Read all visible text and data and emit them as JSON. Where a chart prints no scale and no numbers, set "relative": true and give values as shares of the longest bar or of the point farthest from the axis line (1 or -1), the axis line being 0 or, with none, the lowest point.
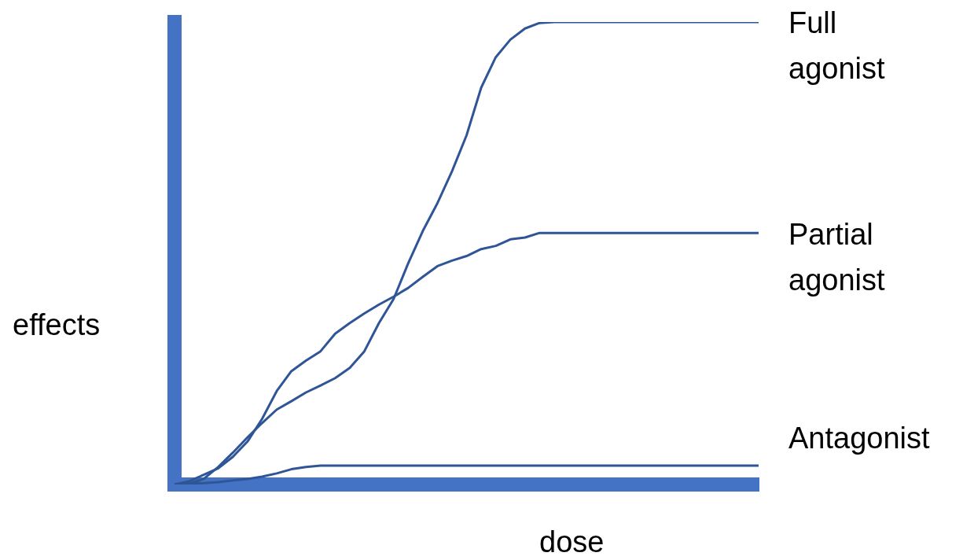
{
  "chart_data": {
    "type": "line",
    "relative": true,
    "xlabel": "dose",
    "ylabel": "effects",
    "legend": false,
    "marker": "none",
    "tick_labels": false,
    "categories": [
      null,
      null,
      null,
      null,
      null,
      null,
      null,
      null,
      null,
      null,
      null,
      null,
      null,
      null,
      null,
      null,
      null,
      null,
      null,
      null,
      null,
      null,
      null,
      null,
      null,
      null,
      null,
      null,
      null,
      null,
      null,
      null,
      null,
      null,
      null,
      null,
      null,
      null,
      null,
      null,
      null
    ],
    "series": [
      {
        "name": "Full agonist",
        "color": "#2f5597",
        "values": [
          0,
          0.002,
          0.012,
          0.038,
          0.069,
          0.102,
          0.133,
          0.162,
          0.18,
          0.199,
          0.214,
          0.23,
          0.252,
          0.288,
          0.349,
          0.401,
          0.478,
          0.548,
          0.608,
          0.677,
          0.755,
          0.858,
          0.924,
          0.962,
          0.986,
          0.998,
          1,
          1,
          1,
          1,
          1,
          1,
          1,
          1,
          1,
          1,
          1,
          1,
          1,
          1,
          1
        ]
      },
      {
        "name": "Partial agonist",
        "color": "#2f5597",
        "values": [
          0,
          0.007,
          0.021,
          0.035,
          0.06,
          0.093,
          0.142,
          0.202,
          0.245,
          0.268,
          0.288,
          0.326,
          0.349,
          0.37,
          0.389,
          0.406,
          0.425,
          0.449,
          0.472,
          0.484,
          0.494,
          0.509,
          0.516,
          0.53,
          0.534,
          0.544,
          0.544,
          0.544,
          0.544,
          0.544,
          0.544,
          0.544,
          0.544,
          0.544,
          0.544,
          0.544,
          0.544,
          0.544,
          0.544,
          0.544,
          0.544
        ]
      },
      {
        "name": "Antagonist",
        "color": "#2f5597",
        "values": [
          0,
          0.002,
          0.003,
          0.005,
          0.009,
          0.012,
          0.017,
          0.024,
          0.033,
          0.038,
          0.041,
          0.041,
          0.041,
          0.041,
          0.041,
          0.041,
          0.041,
          0.041,
          0.041,
          0.041,
          0.041,
          0.041,
          0.041,
          0.041,
          0.041,
          0.041,
          0.041,
          0.041,
          0.041,
          0.041,
          0.041,
          0.041,
          0.041,
          0.041,
          0.041,
          0.041,
          0.041,
          0.041,
          0.041,
          0.041,
          0.041
        ]
      }
    ]
  }
}
